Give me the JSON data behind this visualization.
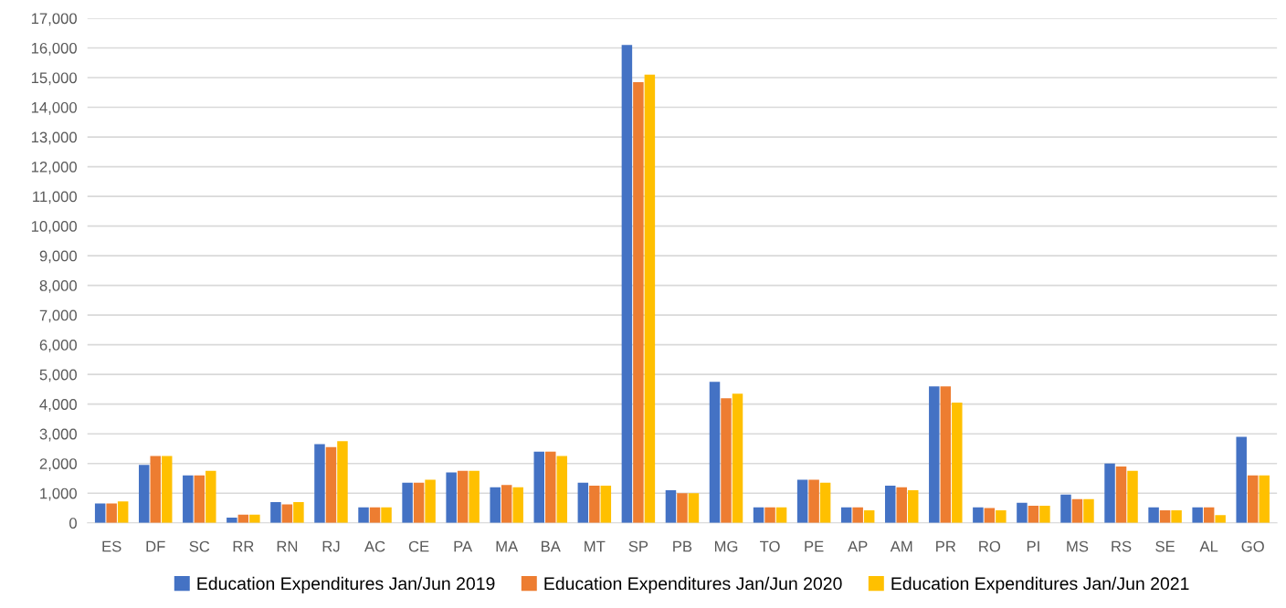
{
  "chart_data": {
    "type": "bar",
    "categories": [
      "ES",
      "DF",
      "SC",
      "RR",
      "RN",
      "RJ",
      "AC",
      "CE",
      "PA",
      "MA",
      "BA",
      "MT",
      "SP",
      "PB",
      "MG",
      "TO",
      "PE",
      "AP",
      "AM",
      "PR",
      "RO",
      "PI",
      "MS",
      "RS",
      "SE",
      "AL",
      "GO"
    ],
    "series": [
      {
        "name": "Education Expenditures Jan/Jun 2019",
        "color": "#4472c4",
        "values": [
          650,
          1950,
          1600,
          180,
          700,
          2650,
          520,
          1350,
          1700,
          1200,
          2400,
          1350,
          16100,
          1100,
          4750,
          520,
          1450,
          520,
          1250,
          4600,
          520,
          680,
          950,
          2000,
          520,
          520,
          2900
        ]
      },
      {
        "name": "Education Expenditures Jan/Jun 2020",
        "color": "#ed7d31",
        "values": [
          650,
          2250,
          1600,
          280,
          620,
          2550,
          520,
          1350,
          1750,
          1280,
          2400,
          1250,
          14850,
          1000,
          4200,
          520,
          1450,
          520,
          1200,
          4600,
          500,
          580,
          800,
          1900,
          420,
          520,
          1600
        ]
      },
      {
        "name": "Education Expenditures Jan/Jun 2021",
        "color": "#ffc000",
        "values": [
          720,
          2250,
          1750,
          280,
          700,
          2750,
          520,
          1450,
          1750,
          1200,
          2250,
          1250,
          15100,
          1000,
          4350,
          520,
          1350,
          420,
          1100,
          4050,
          420,
          580,
          800,
          1750,
          420,
          260,
          1600
        ]
      }
    ],
    "ylim": [
      0,
      17000
    ],
    "yticks": [
      {
        "value": 0,
        "label": "0"
      },
      {
        "value": 1000,
        "label": "1,000"
      },
      {
        "value": 2000,
        "label": "2,000"
      },
      {
        "value": 3000,
        "label": "3,000"
      },
      {
        "value": 4000,
        "label": "4,000"
      },
      {
        "value": 5000,
        "label": "5,000"
      },
      {
        "value": 6000,
        "label": "6,000"
      },
      {
        "value": 7000,
        "label": "7,000"
      },
      {
        "value": 8000,
        "label": "8,000"
      },
      {
        "value": 9000,
        "label": "9,000"
      },
      {
        "value": 10000,
        "label": "10,000"
      },
      {
        "value": 11000,
        "label": "11,000"
      },
      {
        "value": 12000,
        "label": "12,000"
      },
      {
        "value": 13000,
        "label": "13,000"
      },
      {
        "value": 14000,
        "label": "14,000"
      },
      {
        "value": 15000,
        "label": "15,000"
      },
      {
        "value": 16000,
        "label": "16,000"
      },
      {
        "value": 17000,
        "label": "17,000"
      }
    ],
    "grid": "y",
    "legend": "bottom"
  }
}
